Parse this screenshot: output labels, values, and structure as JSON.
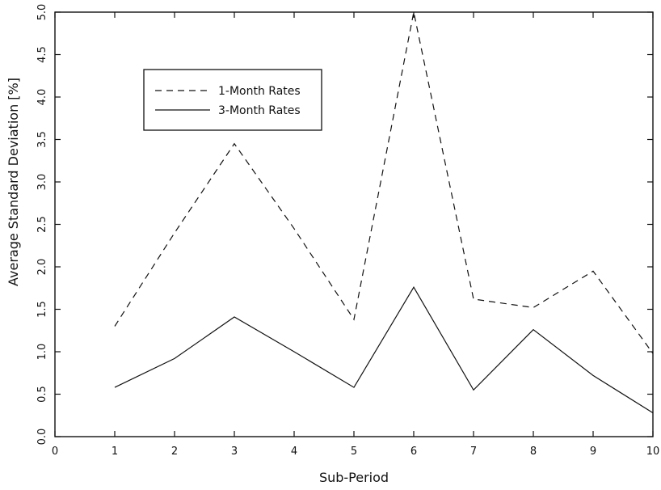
{
  "chart_data": {
    "type": "line",
    "title": "",
    "xlabel": "Sub-Period",
    "ylabel": "Average Standard Deviation [%]",
    "xlim": [
      0,
      10
    ],
    "ylim": [
      0,
      5
    ],
    "x_ticks": [
      "0",
      "1",
      "2",
      "3",
      "4",
      "5",
      "6",
      "7",
      "8",
      "9",
      "10"
    ],
    "y_ticks": [
      "0.0",
      "0.5",
      "1.0",
      "1.5",
      "2.0",
      "2.5",
      "3.0",
      "3.5",
      "4.0",
      "4.5",
      "5.0"
    ],
    "x": [
      1,
      2,
      3,
      4,
      5,
      6,
      7,
      8,
      9,
      10
    ],
    "series": [
      {
        "name": "1-Month Rates",
        "style": "dashed",
        "values": [
          1.3,
          2.4,
          3.45,
          2.45,
          1.38,
          5.0,
          1.62,
          1.52,
          1.95,
          0.98
        ]
      },
      {
        "name": "3-Month Rates",
        "style": "solid",
        "values": [
          0.58,
          0.92,
          1.41,
          1.0,
          0.58,
          1.76,
          0.55,
          1.26,
          0.72,
          0.28
        ]
      }
    ],
    "grid": false,
    "legend_position": "top-left",
    "colors": {
      "line": "#111111",
      "background": "#ffffff"
    }
  }
}
